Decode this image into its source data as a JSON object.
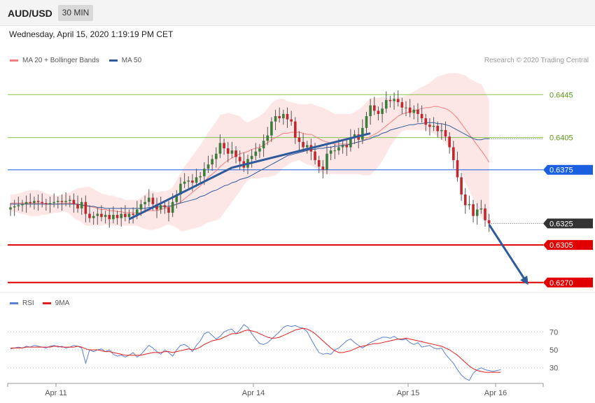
{
  "header": {
    "symbol": "AUD/USD",
    "timeframe": "30 MIN"
  },
  "datetime": "Wednesday, April 15, 2020 1:19:19 PM CET",
  "legend": {
    "main": [
      {
        "label": "MA 20 + Bollinger Bands",
        "color": "#f08080"
      },
      {
        "label": "MA 50",
        "color": "#2e5a9c"
      }
    ],
    "rsi": [
      {
        "label": "RSI",
        "color": "#5b7fd6"
      },
      {
        "label": "9MA",
        "color": "#e02020"
      }
    ]
  },
  "credit": "Research © 2020 Trading Central",
  "chart_data": {
    "type": "candlestick",
    "x_tick_labels": [
      "Apr 11",
      "Apr 14",
      "Apr 15",
      "Apr 16"
    ],
    "price_range": [
      0.6264,
      0.6468
    ],
    "levels": [
      {
        "value": 0.6445,
        "label": "0.6445",
        "kind": "resistance",
        "color": "#8bc34a"
      },
      {
        "value": 0.6405,
        "label": "0.6405",
        "kind": "resistance",
        "color": "#8bc34a"
      },
      {
        "value": 0.6375,
        "label": "0.6375",
        "kind": "pivot",
        "color": "#1a5fe0"
      },
      {
        "value": 0.6325,
        "label": "0.6325",
        "kind": "last-price",
        "color": "#333333"
      },
      {
        "value": 0.6305,
        "label": "0.6305",
        "kind": "support",
        "color": "#e00000"
      },
      {
        "value": 0.627,
        "label": "0.6270",
        "kind": "support",
        "color": "#e00000"
      }
    ],
    "close": [
      0.634,
      0.6341,
      0.6342,
      0.6343,
      0.6345,
      0.6344,
      0.6346,
      0.6345,
      0.6344,
      0.6343,
      0.6344,
      0.6345,
      0.6346,
      0.6345,
      0.6346,
      0.6347,
      0.6343,
      0.6339,
      0.6345,
      0.6334,
      0.633,
      0.6332,
      0.6334,
      0.6331,
      0.6333,
      0.6329,
      0.6333,
      0.633,
      0.6334,
      0.6331,
      0.6334,
      0.6333,
      0.6338,
      0.6343,
      0.6345,
      0.6349,
      0.6343,
      0.6338,
      0.6342,
      0.634,
      0.6335,
      0.6345,
      0.6352,
      0.6362,
      0.6364,
      0.6365,
      0.6363,
      0.6368,
      0.6369,
      0.6376,
      0.638,
      0.6385,
      0.639,
      0.64,
      0.6395,
      0.639,
      0.6393,
      0.6387,
      0.6383,
      0.6377,
      0.6385,
      0.6388,
      0.6392,
      0.6395,
      0.6402,
      0.6407,
      0.642,
      0.6425,
      0.6423,
      0.6427,
      0.6422,
      0.642,
      0.6405,
      0.6401,
      0.6396,
      0.6398,
      0.6392,
      0.6384,
      0.6378,
      0.6375,
      0.639,
      0.6393,
      0.6393,
      0.6396,
      0.6398,
      0.6396,
      0.6405,
      0.6408,
      0.6403,
      0.6414,
      0.6425,
      0.6435,
      0.643,
      0.6427,
      0.6432,
      0.644,
      0.6439,
      0.6441,
      0.6438,
      0.6433,
      0.6433,
      0.6428,
      0.6431,
      0.6427,
      0.6423,
      0.6417,
      0.6415,
      0.6416,
      0.6411,
      0.6412,
      0.6406,
      0.6396,
      0.6384,
      0.6368,
      0.6352,
      0.6342,
      0.6343,
      0.6332,
      0.6338,
      0.6339,
      0.6328,
      0.6325
    ],
    "ma20": [
      0.6344,
      0.6344,
      0.6344,
      0.6344,
      0.6344,
      0.6344,
      0.6344,
      0.6344,
      0.6344,
      0.6343,
      0.6343,
      0.6343,
      0.6343,
      0.6344,
      0.6344,
      0.6344,
      0.6343,
      0.6343,
      0.6342,
      0.6341,
      0.6341,
      0.634,
      0.6339,
      0.6338,
      0.6338,
      0.6337,
      0.6337,
      0.6336,
      0.6336,
      0.6335,
      0.6335,
      0.6335,
      0.6335,
      0.6335,
      0.6336,
      0.6337,
      0.6337,
      0.6337,
      0.6338,
      0.6339,
      0.634,
      0.6341,
      0.6343,
      0.6345,
      0.6348,
      0.6351,
      0.6354,
      0.6357,
      0.636,
      0.6364,
      0.6368,
      0.6371,
      0.6374,
      0.6378,
      0.6381,
      0.6384,
      0.6386,
      0.6388,
      0.639,
      0.6391,
      0.6392,
      0.6394,
      0.6395,
      0.6396,
      0.6398,
      0.64,
      0.6403,
      0.6405,
      0.6407,
      0.6409,
      0.6409,
      0.641,
      0.641,
      0.641,
      0.6409,
      0.6408,
      0.6408,
      0.6406,
      0.6404,
      0.6402,
      0.6401,
      0.64,
      0.6399,
      0.6399,
      0.6399,
      0.6399,
      0.6399,
      0.64,
      0.6401,
      0.6402,
      0.6404,
      0.6406,
      0.6408,
      0.641,
      0.6413,
      0.6416,
      0.6419,
      0.6422,
      0.6425,
      0.6427,
      0.6428,
      0.6429,
      0.643,
      0.6431,
      0.6432,
      0.6433,
      0.6433,
      0.6434,
      0.6434,
      0.6433,
      0.6432,
      0.643,
      0.6427,
      0.6423,
      0.6418,
      0.6413,
      0.6408,
      0.6403,
      0.6398,
      0.6393,
      0.6388,
      0.6382
    ],
    "ma50": [
      0.6343,
      0.6343,
      0.6343,
      0.6343,
      0.6343,
      0.6343,
      0.6343,
      0.6343,
      0.6343,
      0.6343,
      0.6343,
      0.6343,
      0.6343,
      0.6343,
      0.6343,
      0.6343,
      0.6343,
      0.6343,
      0.6342,
      0.6342,
      0.6341,
      0.6341,
      0.634,
      0.634,
      0.6339,
      0.6339,
      0.6339,
      0.6339,
      0.6339,
      0.6339,
      0.6339,
      0.6339,
      0.6339,
      0.6339,
      0.6339,
      0.634,
      0.634,
      0.634,
      0.6341,
      0.6341,
      0.6341,
      0.6342,
      0.6343,
      0.6344,
      0.6345,
      0.6346,
      0.6347,
      0.6348,
      0.635,
      0.6351,
      0.6353,
      0.6355,
      0.6356,
      0.6358,
      0.636,
      0.6361,
      0.6363,
      0.6364,
      0.6366,
      0.6367,
      0.6368,
      0.637,
      0.6372,
      0.6374,
      0.6376,
      0.6378,
      0.638,
      0.6382,
      0.6384,
      0.6386,
      0.6388,
      0.6389,
      0.639,
      0.6391,
      0.6392,
      0.6393,
      0.6394,
      0.6394,
      0.6395,
      0.6395,
      0.6396,
      0.6396,
      0.6397,
      0.6397,
      0.6398,
      0.6398,
      0.6399,
      0.64,
      0.6401,
      0.6402,
      0.6403,
      0.6404,
      0.6406,
      0.6407,
      0.6409,
      0.641,
      0.6412,
      0.6413,
      0.6414,
      0.6415,
      0.6416,
      0.6417,
      0.6417,
      0.6418,
      0.6418,
      0.6419,
      0.6419,
      0.6419,
      0.6418,
      0.6418,
      0.6417,
      0.6416,
      0.6414,
      0.6412,
      0.641,
      0.6408,
      0.6406,
      0.6404,
      0.6403,
      0.6403,
      0.6404,
      0.6404
    ],
    "band_width": [
      0.0008,
      0.0008,
      0.0009,
      0.001,
      0.0011,
      0.0012,
      0.0012,
      0.0012,
      0.0011,
      0.001,
      0.0009,
      0.0008,
      0.0008,
      0.0008,
      0.0008,
      0.001,
      0.0013,
      0.0015,
      0.0016,
      0.0018,
      0.0018,
      0.0017,
      0.0016,
      0.0015,
      0.0014,
      0.0014,
      0.0014,
      0.0013,
      0.0013,
      0.0012,
      0.0012,
      0.0012,
      0.0012,
      0.0014,
      0.0016,
      0.0018,
      0.0018,
      0.0017,
      0.0017,
      0.0016,
      0.0016,
      0.0018,
      0.0022,
      0.0027,
      0.003,
      0.0032,
      0.0034,
      0.0036,
      0.0038,
      0.004,
      0.0042,
      0.0044,
      0.0046,
      0.0048,
      0.0046,
      0.0044,
      0.0041,
      0.0038,
      0.0035,
      0.003,
      0.0027,
      0.0027,
      0.0028,
      0.0029,
      0.003,
      0.0032,
      0.0034,
      0.0035,
      0.0034,
      0.0032,
      0.003,
      0.0028,
      0.0027,
      0.0026,
      0.0027,
      0.0028,
      0.0029,
      0.0029,
      0.003,
      0.0031,
      0.003,
      0.0029,
      0.0028,
      0.0028,
      0.0028,
      0.0028,
      0.0028,
      0.0029,
      0.003,
      0.0032,
      0.0034,
      0.0036,
      0.0034,
      0.0032,
      0.003,
      0.0026,
      0.0022,
      0.002,
      0.0018,
      0.0016,
      0.0016,
      0.0017,
      0.0018,
      0.0019,
      0.002,
      0.0021,
      0.0023,
      0.0025,
      0.0028,
      0.003,
      0.0032,
      0.0035,
      0.0038,
      0.0042,
      0.0046,
      0.005,
      0.0052,
      0.0055,
      0.0058,
      0.0062,
      0.006,
      0.0058
    ],
    "trendlines": [
      {
        "from": [
          30,
          0.6329
        ],
        "to": [
          56,
          0.6377
        ]
      },
      {
        "from": [
          56,
          0.6377
        ],
        "to": [
          91,
          0.6409
        ]
      },
      {
        "from": [
          121,
          0.6324
        ],
        "to": [
          130,
          0.627
        ],
        "arrow": true
      }
    ],
    "rsi": {
      "ticks": [
        70,
        50,
        30
      ],
      "range": [
        15,
        85
      ],
      "values": [
        51,
        52,
        53,
        52,
        54,
        53,
        55,
        54,
        53,
        52,
        54,
        55,
        53,
        54,
        52,
        53,
        55,
        54,
        52,
        35,
        50,
        48,
        50,
        51,
        48,
        50,
        45,
        43,
        44,
        42,
        44,
        47,
        42,
        45,
        50,
        55,
        52,
        48,
        45,
        50,
        47,
        43,
        50,
        55,
        56,
        53,
        48,
        55,
        60,
        68,
        70,
        66,
        62,
        65,
        70,
        72,
        73,
        68,
        72,
        78,
        75,
        68,
        62,
        57,
        56,
        58,
        62,
        66,
        70,
        75,
        77,
        76,
        77,
        75,
        74,
        70,
        62,
        54,
        47,
        45,
        46,
        45,
        50,
        52,
        56,
        60,
        62,
        58,
        55,
        52,
        55,
        58,
        60,
        62,
        64,
        64,
        63,
        65,
        62,
        61,
        62,
        58,
        56,
        58,
        53,
        54,
        55,
        52,
        51,
        52,
        45,
        40,
        35,
        28,
        22,
        18,
        16,
        24,
        28,
        30,
        28,
        27,
        26,
        27,
        28
      ],
      "ma9": [
        52,
        52,
        52,
        52,
        53,
        53,
        53,
        53,
        53,
        53,
        53,
        54,
        54,
        53,
        53,
        53,
        53,
        54,
        53,
        51,
        50,
        50,
        50,
        49,
        48,
        48,
        47,
        46,
        45,
        44,
        44,
        44,
        44,
        44,
        45,
        46,
        47,
        47,
        47,
        48,
        48,
        47,
        48,
        49,
        50,
        51,
        50,
        51,
        53,
        56,
        58,
        60,
        61,
        62,
        64,
        66,
        68,
        68,
        69,
        71,
        72,
        71,
        70,
        68,
        66,
        64,
        63,
        63,
        64,
        66,
        68,
        70,
        72,
        73,
        74,
        73,
        71,
        68,
        64,
        60,
        56,
        52,
        49,
        47,
        47,
        48,
        49,
        51,
        53,
        54,
        55,
        56,
        57,
        57,
        58,
        59,
        60,
        61,
        62,
        62,
        63,
        62,
        61,
        60,
        59,
        58,
        57,
        56,
        55,
        54,
        52,
        50,
        47,
        44,
        40,
        36,
        32,
        29,
        27,
        26,
        25,
        25,
        25,
        25,
        25
      ]
    }
  }
}
